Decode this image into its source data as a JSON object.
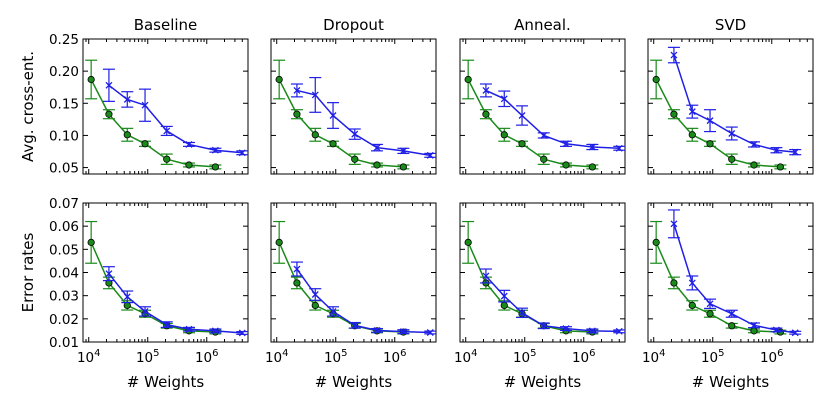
{
  "chart_data": {
    "type": "line",
    "x_scale": "log",
    "xlabel": "# Weights",
    "xlim": [
      8000,
      5000000
    ],
    "xtick_labels": [
      "10^4",
      "10^5",
      "10^6"
    ],
    "rows": [
      {
        "ylabel": "Avg. cross-ent.",
        "ylim": [
          0.04,
          0.25
        ],
        "ytick_labels": [
          "0.05",
          "0.10",
          "0.15",
          "0.20",
          "0.25"
        ],
        "ytick_values": [
          0.05,
          0.1,
          0.15,
          0.2,
          0.25
        ]
      },
      {
        "ylabel": "Error rates",
        "ylim": [
          0.01,
          0.07
        ],
        "ytick_labels": [
          "0.01",
          "0.02",
          "0.03",
          "0.04",
          "0.05",
          "0.06",
          "0.07"
        ],
        "ytick_values": [
          0.01,
          0.02,
          0.03,
          0.04,
          0.05,
          0.06,
          0.07
        ]
      }
    ],
    "columns": [
      "Baseline",
      "Dropout",
      "Anneal.",
      "SVD"
    ],
    "series_styles": [
      {
        "name": "green-circles",
        "color": "#1a8a1a",
        "marker": "circle"
      },
      {
        "name": "blue-crosses",
        "color": "#1f1fe6",
        "marker": "x"
      }
    ],
    "panels": [
      {
        "row": 0,
        "col": 0,
        "series": [
          {
            "name": "green-circles",
            "x": [
              11000,
              22000,
              45000,
              90000,
              210000,
              500000,
              1400000
            ],
            "y": [
              0.187,
              0.133,
              0.101,
              0.087,
              0.063,
              0.054,
              0.051
            ],
            "err": [
              0.03,
              0.007,
              0.01,
              0.004,
              0.008,
              0.003,
              0.003
            ]
          },
          {
            "name": "blue-crosses",
            "x": [
              22000,
              45000,
              90000,
              210000,
              500000,
              1400000,
              4000000
            ],
            "y": [
              0.178,
              0.156,
              0.147,
              0.107,
              0.086,
              0.077,
              0.073
            ],
            "err": [
              0.025,
              0.012,
              0.025,
              0.007,
              0.003,
              0.003,
              0.003
            ]
          }
        ]
      },
      {
        "row": 0,
        "col": 1,
        "series": [
          {
            "name": "green-circles",
            "x": [
              11000,
              22000,
              45000,
              90000,
              210000,
              500000,
              1400000
            ],
            "y": [
              0.187,
              0.133,
              0.101,
              0.087,
              0.063,
              0.054,
              0.051
            ],
            "err": [
              0.03,
              0.007,
              0.01,
              0.004,
              0.008,
              0.003,
              0.003
            ]
          },
          {
            "name": "blue-crosses",
            "x": [
              22000,
              45000,
              90000,
              210000,
              500000,
              1400000,
              4000000
            ],
            "y": [
              0.17,
              0.163,
              0.131,
              0.102,
              0.081,
              0.076,
              0.069
            ],
            "err": [
              0.01,
              0.027,
              0.02,
              0.008,
              0.005,
              0.004,
              0.003
            ]
          }
        ]
      },
      {
        "row": 0,
        "col": 2,
        "series": [
          {
            "name": "green-circles",
            "x": [
              11000,
              22000,
              45000,
              90000,
              210000,
              500000,
              1400000
            ],
            "y": [
              0.187,
              0.133,
              0.101,
              0.087,
              0.063,
              0.054,
              0.051
            ],
            "err": [
              0.03,
              0.007,
              0.01,
              0.004,
              0.008,
              0.003,
              0.003
            ]
          },
          {
            "name": "blue-crosses",
            "x": [
              22000,
              45000,
              90000,
              210000,
              500000,
              1400000,
              4000000
            ],
            "y": [
              0.17,
              0.157,
              0.131,
              0.1,
              0.087,
              0.082,
              0.08
            ],
            "err": [
              0.01,
              0.012,
              0.015,
              0.004,
              0.004,
              0.004,
              0.003
            ]
          }
        ]
      },
      {
        "row": 0,
        "col": 3,
        "series": [
          {
            "name": "green-circles",
            "x": [
              11000,
              22000,
              45000,
              90000,
              210000,
              500000,
              1400000
            ],
            "y": [
              0.187,
              0.133,
              0.101,
              0.087,
              0.063,
              0.054,
              0.051
            ],
            "err": [
              0.03,
              0.007,
              0.01,
              0.004,
              0.008,
              0.003,
              0.003
            ]
          },
          {
            "name": "blue-crosses",
            "x": [
              22000,
              45000,
              90000,
              210000,
              500000,
              1200000,
              2500000
            ],
            "y": [
              0.225,
              0.137,
              0.123,
              0.103,
              0.086,
              0.077,
              0.074
            ],
            "err": [
              0.012,
              0.01,
              0.017,
              0.01,
              0.004,
              0.004,
              0.004
            ]
          }
        ]
      },
      {
        "row": 1,
        "col": 0,
        "series": [
          {
            "name": "green-circles",
            "x": [
              11000,
              22000,
              45000,
              90000,
              210000,
              500000,
              1400000
            ],
            "y": [
              0.053,
              0.0355,
              0.0258,
              0.0222,
              0.017,
              0.0148,
              0.0143
            ],
            "err": [
              0.009,
              0.0025,
              0.002,
              0.0015,
              0.001,
              0.0008,
              0.0008
            ]
          },
          {
            "name": "blue-crosses",
            "x": [
              22000,
              45000,
              90000,
              210000,
              500000,
              1400000,
              4000000
            ],
            "y": [
              0.0395,
              0.0295,
              0.0232,
              0.0175,
              0.0155,
              0.0148,
              0.0139
            ],
            "err": [
              0.003,
              0.0025,
              0.002,
              0.0012,
              0.0008,
              0.0008,
              0.0006
            ]
          }
        ]
      },
      {
        "row": 1,
        "col": 1,
        "series": [
          {
            "name": "green-circles",
            "x": [
              11000,
              22000,
              45000,
              90000,
              210000,
              500000,
              1400000
            ],
            "y": [
              0.053,
              0.0355,
              0.0258,
              0.0222,
              0.017,
              0.0148,
              0.0143
            ],
            "err": [
              0.009,
              0.0025,
              0.002,
              0.0015,
              0.001,
              0.0008,
              0.0008
            ]
          },
          {
            "name": "blue-crosses",
            "x": [
              22000,
              45000,
              90000,
              210000,
              500000,
              1400000,
              4000000
            ],
            "y": [
              0.0415,
              0.0305,
              0.0232,
              0.0172,
              0.015,
              0.0145,
              0.0141
            ],
            "err": [
              0.003,
              0.0025,
              0.002,
              0.0012,
              0.0008,
              0.0008,
              0.0006
            ]
          }
        ]
      },
      {
        "row": 1,
        "col": 2,
        "series": [
          {
            "name": "green-circles",
            "x": [
              11000,
              22000,
              45000,
              90000,
              210000,
              500000,
              1400000
            ],
            "y": [
              0.053,
              0.0355,
              0.0258,
              0.0222,
              0.017,
              0.0148,
              0.0143
            ],
            "err": [
              0.009,
              0.0025,
              0.002,
              0.0015,
              0.001,
              0.0008,
              0.0008
            ]
          },
          {
            "name": "blue-crosses",
            "x": [
              22000,
              45000,
              90000,
              210000,
              500000,
              1400000,
              4000000
            ],
            "y": [
              0.0385,
              0.0298,
              0.0226,
              0.017,
              0.0158,
              0.0148,
              0.0146
            ],
            "err": [
              0.003,
              0.0025,
              0.002,
              0.0012,
              0.0008,
              0.0008,
              0.0006
            ]
          }
        ]
      },
      {
        "row": 1,
        "col": 3,
        "series": [
          {
            "name": "green-circles",
            "x": [
              11000,
              22000,
              45000,
              90000,
              210000,
              500000,
              1400000
            ],
            "y": [
              0.053,
              0.0355,
              0.0258,
              0.0222,
              0.017,
              0.0148,
              0.0143
            ],
            "err": [
              0.009,
              0.0025,
              0.002,
              0.0015,
              0.001,
              0.0008,
              0.0008
            ]
          },
          {
            "name": "blue-crosses",
            "x": [
              22000,
              45000,
              90000,
              210000,
              500000,
              1200000,
              2500000
            ],
            "y": [
              0.061,
              0.0355,
              0.0265,
              0.0222,
              0.0172,
              0.0152,
              0.014
            ],
            "err": [
              0.006,
              0.003,
              0.002,
              0.0015,
              0.001,
              0.0008,
              0.0006
            ]
          }
        ]
      }
    ]
  }
}
